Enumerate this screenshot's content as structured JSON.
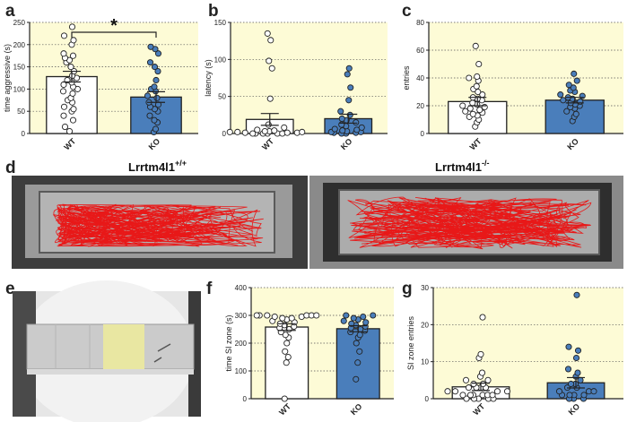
{
  "panel_labels": [
    "a",
    "b",
    "c",
    "d",
    "e",
    "f",
    "g"
  ],
  "colors": {
    "chart_bg": "#fdfbd6",
    "ko_fill": "#4a7ebb",
    "wt_fill": "#ffffff",
    "track_red": "#e81818",
    "zone_yellow": "#e9e7a2"
  },
  "chart_data": [
    {
      "panel": "a",
      "type": "bar",
      "ylabel": "time aggressive (s)",
      "ylim": [
        0,
        250
      ],
      "yticks": [
        "0",
        "50",
        "100",
        "150",
        "200",
        "250"
      ],
      "categories": [
        "WT",
        "KO"
      ],
      "values": [
        128,
        82
      ],
      "sem": [
        12,
        12
      ],
      "significance": "*",
      "points": {
        "WT": [
          5,
          15,
          30,
          40,
          50,
          55,
          60,
          70,
          75,
          80,
          90,
          95,
          100,
          105,
          110,
          115,
          120,
          125,
          130,
          140,
          150,
          160,
          165,
          170,
          175,
          180,
          200,
          210,
          220,
          240
        ],
        "KO": [
          3,
          10,
          25,
          30,
          40,
          50,
          55,
          60,
          65,
          70,
          80,
          85,
          95,
          100,
          105,
          120,
          140,
          150,
          160,
          180,
          190,
          195
        ]
      }
    },
    {
      "panel": "b",
      "type": "bar",
      "ylabel": "latency (s)",
      "ylim": [
        0,
        150
      ],
      "yticks": [
        "0",
        "50",
        "100",
        "150"
      ],
      "categories": [
        "WT",
        "KO"
      ],
      "values": [
        19,
        20
      ],
      "sem": [
        8,
        6
      ],
      "points": {
        "WT": [
          0,
          0,
          0,
          0,
          0,
          0,
          1,
          1,
          1,
          2,
          2,
          2,
          3,
          3,
          4,
          5,
          8,
          12,
          47,
          88,
          98,
          126,
          135
        ],
        "KO": [
          0,
          0,
          1,
          1,
          2,
          2,
          3,
          4,
          5,
          6,
          8,
          10,
          12,
          15,
          18,
          20,
          25,
          30,
          45,
          62,
          80,
          88
        ]
      }
    },
    {
      "panel": "c",
      "type": "bar",
      "ylabel": "entries",
      "ylim": [
        0,
        80
      ],
      "yticks": [
        "0",
        "20",
        "40",
        "60",
        "80"
      ],
      "categories": [
        "WT",
        "KO"
      ],
      "values": [
        23,
        24
      ],
      "sem": [
        3,
        2
      ],
      "points": {
        "WT": [
          5,
          8,
          10,
          12,
          13,
          14,
          15,
          16,
          17,
          18,
          19,
          20,
          21,
          22,
          24,
          25,
          26,
          28,
          30,
          32,
          34,
          38,
          40,
          41,
          50,
          63
        ],
        "KO": [
          9,
          12,
          14,
          16,
          18,
          19,
          20,
          21,
          22,
          23,
          24,
          25,
          26,
          27,
          28,
          30,
          31,
          33,
          35,
          38,
          43
        ]
      }
    },
    {
      "panel": "f",
      "type": "bar",
      "ylabel": "time SI zone (s)",
      "ylim": [
        0,
        400
      ],
      "yticks": [
        "0",
        "100",
        "200",
        "300",
        "400"
      ],
      "categories": [
        "WT",
        "KO"
      ],
      "values": [
        258,
        252
      ],
      "sem": [
        12,
        11
      ],
      "points": {
        "WT": [
          0,
          130,
          150,
          170,
          200,
          220,
          230,
          240,
          250,
          255,
          260,
          265,
          270,
          275,
          280,
          285,
          290,
          290,
          295,
          295,
          300,
          300,
          300,
          300,
          300,
          300
        ],
        "KO": [
          70,
          130,
          170,
          200,
          220,
          230,
          240,
          245,
          250,
          255,
          260,
          265,
          270,
          275,
          280,
          285,
          290,
          295,
          300,
          300
        ]
      }
    },
    {
      "panel": "g",
      "type": "bar",
      "ylabel": "SI zone entries",
      "ylim": [
        0,
        30
      ],
      "yticks": [
        "0",
        "10",
        "20",
        "30"
      ],
      "categories": [
        "WT",
        "KO"
      ],
      "values": [
        3.2,
        4.3
      ],
      "sem": [
        1,
        1.4
      ],
      "points": {
        "WT": [
          0,
          0,
          0,
          0,
          0,
          1,
          1,
          1,
          1,
          1,
          1,
          2,
          2,
          2,
          2,
          3,
          3,
          3,
          3,
          4,
          4,
          5,
          5,
          6,
          7,
          11,
          12,
          22
        ],
        "KO": [
          0,
          0,
          0,
          1,
          1,
          1,
          1,
          2,
          2,
          2,
          3,
          3,
          4,
          4,
          5,
          6,
          7,
          8,
          11,
          13,
          14,
          28
        ]
      }
    }
  ],
  "panel_d": {
    "left_label": "Lrrtm4l1",
    "left_sup": "+/+",
    "right_label": "Lrrtm4l1",
    "right_sup": "-/-"
  }
}
